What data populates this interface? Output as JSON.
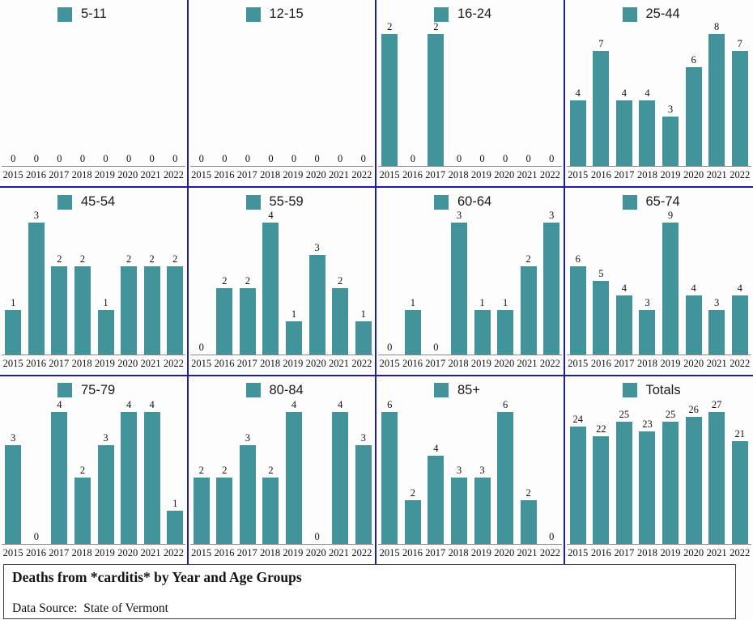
{
  "page": {
    "title": "Deaths from *carditis* by Year and Age Groups",
    "data_source": "Data Source:  State of Vermont"
  },
  "colors": {
    "bar": "#43949a",
    "divider": "#1e1e96",
    "axis": "#8a8a8a",
    "background": "#fdfdfd"
  },
  "years": [
    "2015",
    "2016",
    "2017",
    "2018",
    "2019",
    "2020",
    "2021",
    "2022"
  ],
  "chart_data": [
    {
      "type": "bar",
      "name": "5-11",
      "legend": "5-11",
      "categories": [
        "2015",
        "2016",
        "2017",
        "2018",
        "2019",
        "2020",
        "2021",
        "2022"
      ],
      "values": [
        0,
        0,
        0,
        0,
        0,
        0,
        0,
        0
      ]
    },
    {
      "type": "bar",
      "name": "12-15",
      "legend": "12-15",
      "categories": [
        "2015",
        "2016",
        "2017",
        "2018",
        "2019",
        "2020",
        "2021",
        "2022"
      ],
      "values": [
        0,
        0,
        0,
        0,
        0,
        0,
        0,
        0
      ]
    },
    {
      "type": "bar",
      "name": "16-24",
      "legend": "16-24",
      "categories": [
        "2015",
        "2016",
        "2017",
        "2018",
        "2019",
        "2020",
        "2021",
        "2022"
      ],
      "values": [
        2,
        0,
        2,
        0,
        0,
        0,
        0,
        0
      ]
    },
    {
      "type": "bar",
      "name": "25-44",
      "legend": "25-44",
      "categories": [
        "2015",
        "2016",
        "2017",
        "2018",
        "2019",
        "2020",
        "2021",
        "2022"
      ],
      "values": [
        4,
        7,
        4,
        4,
        3,
        6,
        8,
        7
      ]
    },
    {
      "type": "bar",
      "name": "45-54",
      "legend": "45-54",
      "categories": [
        "2015",
        "2016",
        "2017",
        "2018",
        "2019",
        "2020",
        "2021",
        "2022"
      ],
      "values": [
        1,
        3,
        2,
        2,
        1,
        2,
        2,
        2
      ]
    },
    {
      "type": "bar",
      "name": "55-59",
      "legend": "55-59",
      "categories": [
        "2015",
        "2016",
        "2017",
        "2018",
        "2019",
        "2020",
        "2021",
        "2022"
      ],
      "values": [
        0,
        2,
        2,
        4,
        1,
        3,
        2,
        1
      ]
    },
    {
      "type": "bar",
      "name": "60-64",
      "legend": "60-64",
      "categories": [
        "2015",
        "2016",
        "2017",
        "2018",
        "2019",
        "2020",
        "2021",
        "2022"
      ],
      "values": [
        0,
        1,
        0,
        3,
        1,
        1,
        2,
        3
      ]
    },
    {
      "type": "bar",
      "name": "65-74",
      "legend": "65-74",
      "categories": [
        "2015",
        "2016",
        "2017",
        "2018",
        "2019",
        "2020",
        "2021",
        "2022"
      ],
      "values": [
        6,
        5,
        4,
        3,
        9,
        4,
        3,
        4
      ]
    },
    {
      "type": "bar",
      "name": "75-79",
      "legend": "75-79",
      "categories": [
        "2015",
        "2016",
        "2017",
        "2018",
        "2019",
        "2020",
        "2021",
        "2022"
      ],
      "values": [
        3,
        0,
        4,
        2,
        3,
        4,
        4,
        1
      ]
    },
    {
      "type": "bar",
      "name": "80-84",
      "legend": "80-84",
      "categories": [
        "2015",
        "2016",
        "2017",
        "2018",
        "2019",
        "2020",
        "2021",
        "2022"
      ],
      "values": [
        2,
        2,
        3,
        2,
        4,
        0,
        4,
        3
      ]
    },
    {
      "type": "bar",
      "name": "85+",
      "legend": "85+",
      "categories": [
        "2015",
        "2016",
        "2017",
        "2018",
        "2019",
        "2020",
        "2021",
        "2022"
      ],
      "values": [
        6,
        2,
        4,
        3,
        3,
        6,
        2,
        0
      ]
    },
    {
      "type": "bar",
      "name": "Totals",
      "legend": "Totals",
      "categories": [
        "2015",
        "2016",
        "2017",
        "2018",
        "2019",
        "2020",
        "2021",
        "2022"
      ],
      "values": [
        24,
        22,
        25,
        23,
        25,
        26,
        27,
        21
      ]
    }
  ],
  "layout_hints": {
    "grid": "4 columns x 3 rows of panels, independent y-scale per panel, zero-based",
    "legend_position": "top-left-of-center inside each panel",
    "value_labels": "above each bar",
    "gridlines": "off"
  }
}
